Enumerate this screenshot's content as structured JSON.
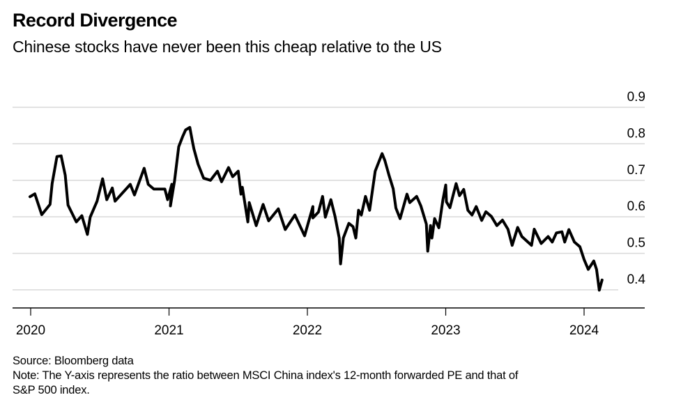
{
  "header": {
    "title": "Record Divergence",
    "subtitle": "Chinese stocks have never been this cheap relative to the US"
  },
  "footer": {
    "source": "Source: Bloomberg data",
    "note_line1": "Note: The Y-axis represents the ratio between MSCI China index's 12-month forwarded PE and that of",
    "note_line2": "S&P 500 index."
  },
  "chart_data": {
    "type": "line",
    "title": "Record Divergence",
    "subtitle": "Chinese stocks have never been this cheap relative to the US",
    "xlabel": "",
    "ylabel": "",
    "x_ticks": [
      "2020",
      "2021",
      "2022",
      "2023",
      "2024"
    ],
    "x_tick_values": [
      2020,
      2021,
      2022,
      2023,
      2024
    ],
    "y_ticks": [
      "0.4",
      "0.5",
      "0.6",
      "0.7",
      "0.8",
      "0.9"
    ],
    "y_tick_values": [
      0.4,
      0.5,
      0.6,
      0.7,
      0.8,
      0.9
    ],
    "xlim": [
      2019.87,
      2024.45
    ],
    "ylim": [
      0.35,
      0.9
    ],
    "y_axis_position": "right",
    "grid": true,
    "legend": "none",
    "line_color": "#000000",
    "grid_color": "#d9d9d9",
    "series": [
      {
        "name": "MSCI China / S&P 500 12M forward PE ratio",
        "points": [
          [
            2019.995,
            0.655
          ],
          [
            2020.03,
            0.663
          ],
          [
            2020.08,
            0.606
          ],
          [
            2020.14,
            0.634
          ],
          [
            2020.155,
            0.691
          ],
          [
            2020.19,
            0.765
          ],
          [
            2020.22,
            0.767
          ],
          [
            2020.25,
            0.714
          ],
          [
            2020.27,
            0.632
          ],
          [
            2020.33,
            0.586
          ],
          [
            2020.37,
            0.603
          ],
          [
            2020.41,
            0.552
          ],
          [
            2020.43,
            0.599
          ],
          [
            2020.48,
            0.643
          ],
          [
            2020.52,
            0.704
          ],
          [
            2020.55,
            0.647
          ],
          [
            2020.59,
            0.679
          ],
          [
            2020.61,
            0.643
          ],
          [
            2020.72,
            0.689
          ],
          [
            2020.75,
            0.66
          ],
          [
            2020.82,
            0.733
          ],
          [
            2020.85,
            0.689
          ],
          [
            2020.89,
            0.676
          ],
          [
            2020.97,
            0.676
          ],
          [
            2020.99,
            0.647
          ],
          [
            2021.02,
            0.689
          ],
          [
            2021.01,
            0.63
          ],
          [
            2021.04,
            0.698
          ],
          [
            2021.07,
            0.792
          ],
          [
            2021.1,
            0.821
          ],
          [
            2021.12,
            0.838
          ],
          [
            2021.15,
            0.845
          ],
          [
            2021.17,
            0.805
          ],
          [
            2021.18,
            0.786
          ],
          [
            2021.21,
            0.744
          ],
          [
            2021.25,
            0.706
          ],
          [
            2021.3,
            0.7
          ],
          [
            2021.35,
            0.725
          ],
          [
            2021.38,
            0.696
          ],
          [
            2021.43,
            0.735
          ],
          [
            2021.46,
            0.71
          ],
          [
            2021.5,
            0.725
          ],
          [
            2021.52,
            0.662
          ],
          [
            2021.53,
            0.681
          ],
          [
            2021.57,
            0.586
          ],
          [
            2021.58,
            0.639
          ],
          [
            2021.63,
            0.576
          ],
          [
            2021.68,
            0.634
          ],
          [
            2021.72,
            0.589
          ],
          [
            2021.79,
            0.622
          ],
          [
            2021.84,
            0.565
          ],
          [
            2021.91,
            0.605
          ],
          [
            2021.98,
            0.548
          ],
          [
            2022.04,
            0.628
          ],
          [
            2022.04,
            0.597
          ],
          [
            2022.08,
            0.613
          ],
          [
            2022.11,
            0.656
          ],
          [
            2022.13,
            0.599
          ],
          [
            2022.17,
            0.647
          ],
          [
            2022.2,
            0.601
          ],
          [
            2022.23,
            0.542
          ],
          [
            2022.24,
            0.471
          ],
          [
            2022.26,
            0.542
          ],
          [
            2022.3,
            0.582
          ],
          [
            2022.33,
            0.573
          ],
          [
            2022.35,
            0.542
          ],
          [
            2022.37,
            0.618
          ],
          [
            2022.39,
            0.605
          ],
          [
            2022.42,
            0.656
          ],
          [
            2022.45,
            0.618
          ],
          [
            2022.49,
            0.725
          ],
          [
            2022.51,
            0.744
          ],
          [
            2022.54,
            0.773
          ],
          [
            2022.56,
            0.754
          ],
          [
            2022.59,
            0.714
          ],
          [
            2022.62,
            0.677
          ],
          [
            2022.64,
            0.624
          ],
          [
            2022.67,
            0.595
          ],
          [
            2022.72,
            0.662
          ],
          [
            2022.74,
            0.639
          ],
          [
            2022.79,
            0.656
          ],
          [
            2022.82,
            0.63
          ],
          [
            2022.86,
            0.58
          ],
          [
            2022.87,
            0.506
          ],
          [
            2022.89,
            0.576
          ],
          [
            2022.9,
            0.542
          ],
          [
            2022.92,
            0.595
          ],
          [
            2022.95,
            0.57
          ],
          [
            2022.98,
            0.647
          ],
          [
            2023.0,
            0.687
          ],
          [
            2023.005,
            0.641
          ],
          [
            2023.03,
            0.625
          ],
          [
            2023.05,
            0.654
          ],
          [
            2023.075,
            0.691
          ],
          [
            2023.1,
            0.658
          ],
          [
            2023.13,
            0.675
          ],
          [
            2023.16,
            0.618
          ],
          [
            2023.19,
            0.605
          ],
          [
            2023.22,
            0.628
          ],
          [
            2023.26,
            0.59
          ],
          [
            2023.29,
            0.614
          ],
          [
            2023.33,
            0.601
          ],
          [
            2023.37,
            0.576
          ],
          [
            2023.41,
            0.591
          ],
          [
            2023.45,
            0.566
          ],
          [
            2023.48,
            0.522
          ],
          [
            2023.52,
            0.571
          ],
          [
            2023.55,
            0.546
          ],
          [
            2023.62,
            0.522
          ],
          [
            2023.64,
            0.566
          ],
          [
            2023.69,
            0.527
          ],
          [
            2023.74,
            0.546
          ],
          [
            2023.77,
            0.531
          ],
          [
            2023.8,
            0.556
          ],
          [
            2023.84,
            0.559
          ],
          [
            2023.86,
            0.531
          ],
          [
            2023.89,
            0.565
          ],
          [
            2023.93,
            0.531
          ],
          [
            2023.97,
            0.518
          ],
          [
            2024.0,
            0.483
          ],
          [
            2024.03,
            0.456
          ],
          [
            2024.07,
            0.479
          ],
          [
            2024.09,
            0.456
          ],
          [
            2024.11,
            0.399
          ],
          [
            2024.13,
            0.427
          ]
        ]
      }
    ]
  }
}
